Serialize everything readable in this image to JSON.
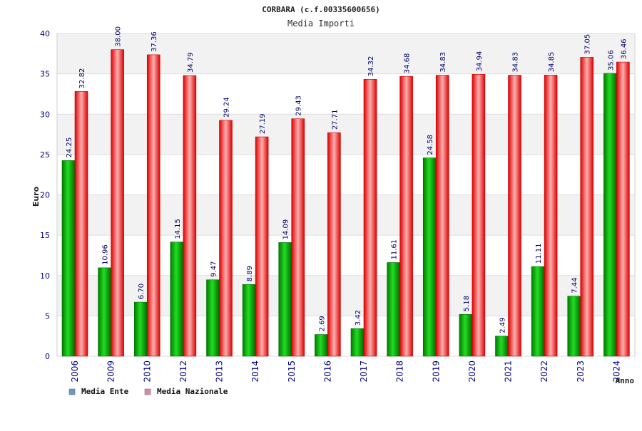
{
  "chart_data": {
    "type": "bar",
    "title": "CORBARA (c.f.00335600656)",
    "subtitle": "Media Importi",
    "ylabel": "Euro",
    "xlabel": "Anno",
    "ylim": [
      0,
      40
    ],
    "yticks": [
      0,
      5,
      10,
      15,
      20,
      25,
      30,
      35,
      40
    ],
    "grid": true,
    "legend_position": "bottom-left",
    "categories": [
      "2006",
      "2009",
      "2010",
      "2012",
      "2013",
      "2014",
      "2015",
      "2016",
      "2017",
      "2018",
      "2019",
      "2020",
      "2021",
      "2022",
      "2023",
      "2024"
    ],
    "series": [
      {
        "name": "Media Ente",
        "legend_color": "#6699cc",
        "bar_color": "#00aa00",
        "values": [
          24.25,
          10.96,
          6.7,
          14.15,
          9.47,
          8.89,
          14.09,
          2.69,
          3.42,
          11.61,
          24.58,
          5.18,
          2.49,
          11.11,
          7.44,
          35.06
        ],
        "labels": [
          "24.25",
          "10.96",
          "6.70",
          "14.15",
          "9.47",
          "8.89",
          "14.09",
          "2.69",
          "3.42",
          "11.61",
          "24.58",
          "5.18",
          "2.49",
          "11.11",
          "7.44",
          "35.06"
        ]
      },
      {
        "name": "Media Nazionale",
        "legend_color": "#dd88aa",
        "bar_color": "#ee2222",
        "values": [
          32.82,
          38.0,
          37.36,
          34.79,
          29.24,
          27.19,
          29.43,
          27.71,
          34.32,
          34.68,
          34.83,
          34.94,
          34.83,
          34.85,
          37.05,
          36.46
        ],
        "labels": [
          "32.82",
          "38.00",
          "37.36",
          "34.79",
          "29.24",
          "27.19",
          "29.43",
          "27.71",
          "34.32",
          "34.68",
          "34.83",
          "34.94",
          "34.83",
          "34.85",
          "37.05",
          "36.46"
        ]
      }
    ]
  }
}
